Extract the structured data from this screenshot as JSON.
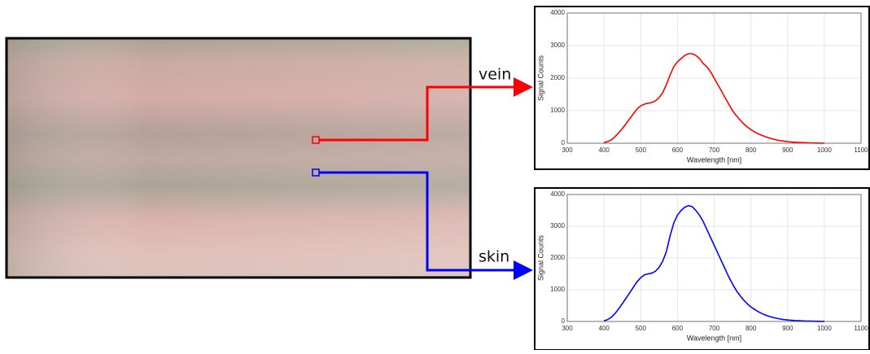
{
  "annotations": {
    "vein": "vein",
    "skin": "skin"
  },
  "chart_data": [
    {
      "type": "line",
      "xlabel": "Wavelength [nm]",
      "ylabel": "Signal Counts",
      "color": "#ff0000",
      "x": [
        400,
        410,
        420,
        430,
        440,
        450,
        460,
        470,
        480,
        490,
        500,
        510,
        520,
        530,
        540,
        550,
        560,
        570,
        580,
        590,
        600,
        610,
        620,
        630,
        640,
        650,
        660,
        670,
        680,
        690,
        700,
        710,
        720,
        730,
        740,
        750,
        760,
        770,
        780,
        790,
        800,
        810,
        820,
        830,
        840,
        850,
        860,
        870,
        880,
        890,
        900,
        910,
        920,
        930,
        940,
        950,
        960,
        970,
        980,
        990,
        1000
      ],
      "values": [
        20,
        50,
        100,
        200,
        320,
        450,
        600,
        750,
        900,
        1050,
        1150,
        1200,
        1230,
        1250,
        1300,
        1400,
        1550,
        1800,
        2100,
        2350,
        2500,
        2600,
        2700,
        2750,
        2750,
        2700,
        2600,
        2450,
        2350,
        2200,
        2000,
        1800,
        1600,
        1400,
        1200,
        1000,
        850,
        720,
        600,
        500,
        420,
        350,
        290,
        240,
        200,
        160,
        130,
        100,
        80,
        65,
        50,
        40,
        30,
        25,
        20,
        15,
        10,
        8,
        5,
        3,
        2
      ],
      "xlim": [
        300,
        1100
      ],
      "ylim": [
        0,
        4000
      ],
      "xticks": [
        300,
        400,
        500,
        600,
        700,
        800,
        900,
        1000,
        1100
      ],
      "yticks": [
        0,
        1000,
        2000,
        3000,
        4000
      ],
      "grid": true
    },
    {
      "type": "line",
      "xlabel": "Wavelength [nm]",
      "ylabel": "Signal Counts",
      "color": "#0000ff",
      "x": [
        400,
        410,
        420,
        430,
        440,
        450,
        460,
        470,
        480,
        490,
        500,
        510,
        520,
        530,
        540,
        550,
        560,
        570,
        580,
        590,
        600,
        610,
        620,
        630,
        640,
        650,
        660,
        670,
        680,
        690,
        700,
        710,
        720,
        730,
        740,
        750,
        760,
        770,
        780,
        790,
        800,
        810,
        820,
        830,
        840,
        850,
        860,
        870,
        880,
        890,
        900,
        910,
        920,
        930,
        940,
        950,
        960,
        970,
        980,
        990,
        1000
      ],
      "values": [
        20,
        60,
        130,
        250,
        400,
        560,
        730,
        900,
        1080,
        1250,
        1380,
        1470,
        1500,
        1520,
        1580,
        1700,
        1900,
        2200,
        2700,
        3100,
        3350,
        3500,
        3600,
        3650,
        3620,
        3500,
        3350,
        3150,
        2900,
        2650,
        2400,
        2150,
        1900,
        1650,
        1400,
        1180,
        980,
        820,
        680,
        560,
        460,
        380,
        310,
        250,
        200,
        160,
        125,
        100,
        78,
        60,
        46,
        36,
        28,
        22,
        17,
        13,
        10,
        7,
        5,
        3,
        2
      ],
      "xlim": [
        300,
        1100
      ],
      "ylim": [
        0,
        4000
      ],
      "xticks": [
        300,
        400,
        500,
        600,
        700,
        800,
        900,
        1000,
        1100
      ],
      "yticks": [
        0,
        1000,
        2000,
        3000,
        4000
      ],
      "grid": true
    }
  ]
}
